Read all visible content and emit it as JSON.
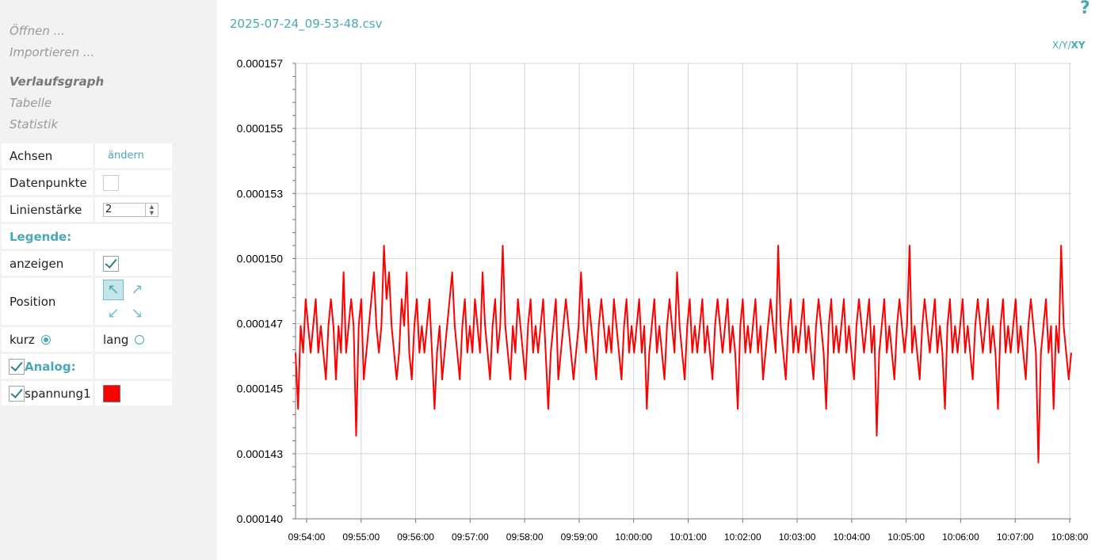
{
  "sidebar": {
    "menu": [
      "Öffnen ...",
      "Importieren ...",
      "Verlaufsgraph",
      "Tabelle",
      "Statistik"
    ],
    "active_menu": "Verlaufsgraph",
    "settings": {
      "axes_label": "Achsen",
      "axes_link": "ändern",
      "datapoints_label": "Datenpunkte",
      "datapoints_checked": false,
      "linewidth_label": "Linienstärke",
      "linewidth_value": "2",
      "legend_title": "Legende:",
      "show_label": "anzeigen",
      "show_checked": true,
      "position_label": "Position",
      "position_selected": "top-left",
      "short_label": "kurz",
      "long_label": "lang",
      "legend_mode": "kurz",
      "analog_label": "Analog:",
      "analog_checked": true,
      "channel_label": "spannung1",
      "channel_checked": true,
      "channel_color": "#ff0000"
    }
  },
  "header": {
    "file_name": "2025-07-24_09-53-48.csv",
    "help_icon": "?",
    "axis_mode_prefix": "X/Y/",
    "axis_mode_active": "XY"
  },
  "chart_data": {
    "type": "line",
    "x_tick_labels": [
      "09:54:00",
      "09:55:00",
      "09:56:00",
      "09:57:00",
      "09:58:00",
      "09:59:00",
      "10:00:00",
      "10:01:00",
      "10:02:00",
      "10:03:00",
      "10:04:00",
      "10:05:00",
      "10:06:00",
      "10:07:00",
      "10:08:00"
    ],
    "y_tick_labels": [
      "0.000157",
      "0.000155",
      "0.000153",
      "0.000150",
      "0.000147",
      "0.000145",
      "0.000143",
      "0.000140"
    ],
    "ylim": [
      0.00014,
      0.000157
    ],
    "xlim_seconds_from_first_tick": [
      -0.95,
      60.75
    ],
    "grid": true,
    "series": [
      {
        "color": "#ff0000",
        "sample_interval_s": 0.0835,
        "values": [
          0.0001462,
          0.0001441,
          0.0001472,
          0.0001462,
          0.0001482,
          0.0001472,
          0.0001462,
          0.0001472,
          0.0001482,
          0.0001462,
          0.0001472,
          0.0001462,
          0.0001452,
          0.0001472,
          0.0001482,
          0.0001472,
          0.0001452,
          0.0001472,
          0.0001462,
          0.0001492,
          0.0001462,
          0.0001472,
          0.0001482,
          0.0001472,
          0.0001431,
          0.0001472,
          0.0001482,
          0.0001452,
          0.0001462,
          0.0001472,
          0.0001482,
          0.0001492,
          0.0001472,
          0.0001462,
          0.0001472,
          0.0001502,
          0.0001482,
          0.0001492,
          0.0001472,
          0.0001462,
          0.0001452,
          0.0001462,
          0.0001482,
          0.0001472,
          0.0001492,
          0.0001462,
          0.0001452,
          0.0001472,
          0.0001482,
          0.0001462,
          0.0001472,
          0.0001462,
          0.0001472,
          0.0001482,
          0.0001462,
          0.0001441,
          0.0001462,
          0.0001472,
          0.0001452,
          0.0001462,
          0.0001472,
          0.0001482,
          0.0001492,
          0.0001472,
          0.0001462,
          0.0001452,
          0.0001472,
          0.0001482,
          0.0001462,
          0.0001472,
          0.0001462,
          0.0001482,
          0.0001472,
          0.0001462,
          0.0001492,
          0.0001472,
          0.0001462,
          0.0001452,
          0.0001472,
          0.0001482,
          0.0001462,
          0.0001472,
          0.0001502,
          0.0001472,
          0.0001462,
          0.0001452,
          0.0001472,
          0.0001462,
          0.0001482,
          0.0001472,
          0.0001462,
          0.0001452,
          0.0001472,
          0.0001482,
          0.0001462,
          0.0001472,
          0.0001462,
          0.0001472,
          0.0001482,
          0.0001462,
          0.0001441,
          0.0001462,
          0.0001472,
          0.0001482,
          0.0001452,
          0.0001462,
          0.0001472,
          0.0001482,
          0.0001472,
          0.0001462,
          0.0001452,
          0.0001462,
          0.0001472,
          0.0001492,
          0.0001472,
          0.0001462,
          0.0001482,
          0.0001472,
          0.0001462,
          0.0001452,
          0.0001472,
          0.0001482,
          0.0001472,
          0.0001462,
          0.0001472,
          0.0001462,
          0.0001482,
          0.0001472,
          0.0001462,
          0.0001452,
          0.0001472,
          0.0001482,
          0.0001462,
          0.0001472,
          0.0001462,
          0.0001472,
          0.0001482,
          0.0001462,
          0.0001472,
          0.0001441,
          0.0001462,
          0.0001472,
          0.0001482,
          0.0001462,
          0.0001472,
          0.0001462,
          0.0001452,
          0.0001472,
          0.0001482,
          0.0001472,
          0.0001462,
          0.0001492,
          0.0001472,
          0.0001462,
          0.0001452,
          0.0001472,
          0.0001482,
          0.0001462,
          0.0001472,
          0.0001462,
          0.0001472,
          0.0001482,
          0.0001462,
          0.0001472,
          0.0001462,
          0.0001452,
          0.0001472,
          0.0001482,
          0.0001472,
          0.0001462,
          0.0001472,
          0.0001482,
          0.0001462,
          0.0001472,
          0.0001462,
          0.0001441,
          0.0001472,
          0.0001482,
          0.0001462,
          0.0001472,
          0.0001462,
          0.0001472,
          0.0001482,
          0.0001462,
          0.0001472,
          0.0001452,
          0.0001462,
          0.0001472,
          0.0001482,
          0.0001472,
          0.0001462,
          0.0001502,
          0.0001472,
          0.0001462,
          0.0001452,
          0.0001472,
          0.0001482,
          0.0001462,
          0.0001472,
          0.0001462,
          0.0001472,
          0.0001482,
          0.0001462,
          0.0001472,
          0.0001462,
          0.0001452,
          0.0001472,
          0.0001482,
          0.0001472,
          0.0001462,
          0.0001441,
          0.0001472,
          0.0001482,
          0.0001462,
          0.0001472,
          0.0001462,
          0.0001472,
          0.0001482,
          0.0001462,
          0.0001472,
          0.0001462,
          0.0001452,
          0.0001472,
          0.0001482,
          0.0001472,
          0.0001462,
          0.0001472,
          0.0001482,
          0.0001462,
          0.0001472,
          0.0001431,
          0.0001462,
          0.0001472,
          0.0001482,
          0.0001462,
          0.0001472,
          0.0001462,
          0.0001452,
          0.0001472,
          0.0001482,
          0.0001472,
          0.0001462,
          0.0001472,
          0.0001502,
          0.0001462,
          0.0001472,
          0.0001462,
          0.0001452,
          0.0001472,
          0.0001482,
          0.0001472,
          0.0001462,
          0.0001472,
          0.0001482,
          0.0001462,
          0.0001472,
          0.0001462,
          0.0001441,
          0.0001472,
          0.0001482,
          0.0001462,
          0.0001472,
          0.0001462,
          0.0001472,
          0.0001482,
          0.0001462,
          0.0001472,
          0.0001462,
          0.0001452,
          0.0001472,
          0.0001482,
          0.0001472,
          0.0001462,
          0.0001472,
          0.0001482,
          0.0001462,
          0.0001472,
          0.0001462,
          0.0001441,
          0.0001472,
          0.0001482,
          0.0001462,
          0.0001472,
          0.0001462,
          0.0001472,
          0.0001482,
          0.0001462,
          0.0001472,
          0.0001462,
          0.0001452,
          0.0001472,
          0.0001482,
          0.0001472,
          0.0001462,
          0.0001421,
          0.0001462,
          0.0001472,
          0.0001482,
          0.0001462,
          0.0001472,
          0.0001441,
          0.0001472,
          0.0001462,
          0.0001502,
          0.0001472,
          0.0001462,
          0.0001452,
          0.0001462
        ]
      }
    ]
  }
}
